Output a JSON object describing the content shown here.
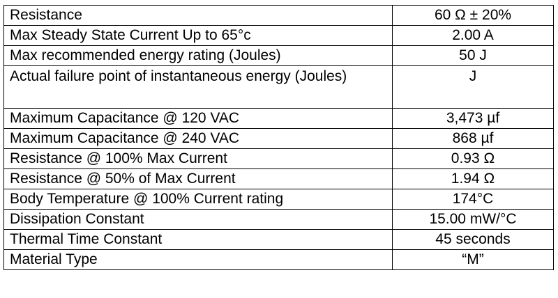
{
  "rows": [
    {
      "label": "Resistance",
      "value": "60 Ω ± 20%"
    },
    {
      "label": "Max Steady State Current Up to 65°c",
      "value": "2.00 A"
    },
    {
      "label": "Max recommended energy rating (Joules)",
      "value": "50 J"
    },
    {
      "label": "Actual failure point of instantaneous energy (Joules)",
      "value": "J"
    },
    {
      "label": "Maximum Capacitance @ 120 VAC",
      "value": "3,473 µf"
    },
    {
      "label": "Maximum Capacitance @ 240 VAC",
      "value": "868 µf"
    },
    {
      "label": "Resistance @ 100% Max Current",
      "value": "0.93 Ω"
    },
    {
      "label": "Resistance @ 50% of Max Current",
      "value": "1.94 Ω"
    },
    {
      "label": "Body Temperature @ 100% Current rating",
      "value": "174°C"
    },
    {
      "label": "Dissipation Constant",
      "value": "15.00 mW/°C"
    },
    {
      "label": "Thermal Time Constant",
      "value": "45 seconds"
    },
    {
      "label": "Material Type",
      "value": "“M”"
    }
  ]
}
